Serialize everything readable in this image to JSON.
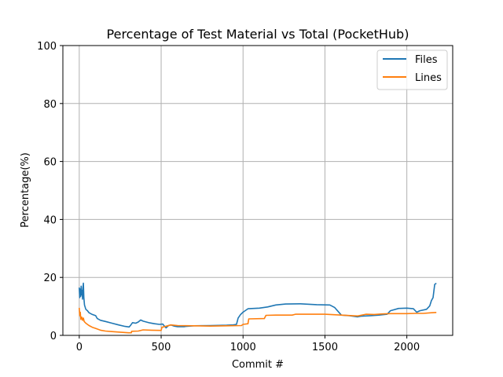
{
  "chart_data": {
    "type": "line",
    "title": "Percentage of Test Material vs Total (PocketHub)",
    "xlabel": "Commit #",
    "ylabel": "Percentage(%)",
    "xlim": [
      -100,
      2280
    ],
    "ylim": [
      0,
      100
    ],
    "xticks": [
      0,
      500,
      1000,
      1500,
      2000
    ],
    "yticks": [
      0,
      20,
      40,
      60,
      80,
      100
    ],
    "grid": true,
    "legend_position": "top-right",
    "series": [
      {
        "name": "Files",
        "color": "#1f77b4",
        "points": [
          [
            0,
            16.5
          ],
          [
            3,
            13.0
          ],
          [
            6,
            16.0
          ],
          [
            9,
            13.5
          ],
          [
            12,
            17.0
          ],
          [
            15,
            14.0
          ],
          [
            18,
            15.5
          ],
          [
            20,
            12.5
          ],
          [
            23,
            16.5
          ],
          [
            25,
            18.0
          ],
          [
            28,
            13.0
          ],
          [
            32,
            10.5
          ],
          [
            40,
            9.0
          ],
          [
            50,
            8.5
          ],
          [
            60,
            7.8
          ],
          [
            70,
            7.5
          ],
          [
            80,
            7.2
          ],
          [
            100,
            6.8
          ],
          [
            110,
            5.8
          ],
          [
            130,
            5.2
          ],
          [
            160,
            4.8
          ],
          [
            200,
            4.2
          ],
          [
            240,
            3.6
          ],
          [
            280,
            3.1
          ],
          [
            305,
            2.9
          ],
          [
            315,
            3.6
          ],
          [
            325,
            4.4
          ],
          [
            345,
            4.2
          ],
          [
            360,
            4.6
          ],
          [
            375,
            5.3
          ],
          [
            390,
            4.9
          ],
          [
            410,
            4.6
          ],
          [
            430,
            4.3
          ],
          [
            460,
            4.0
          ],
          [
            490,
            3.8
          ],
          [
            510,
            3.9
          ],
          [
            520,
            3.2
          ],
          [
            530,
            2.6
          ],
          [
            545,
            3.4
          ],
          [
            560,
            3.6
          ],
          [
            580,
            3.2
          ],
          [
            600,
            3.0
          ],
          [
            640,
            3.0
          ],
          [
            650,
            3.1
          ],
          [
            700,
            3.3
          ],
          [
            800,
            3.4
          ],
          [
            900,
            3.5
          ],
          [
            940,
            3.6
          ],
          [
            960,
            3.8
          ],
          [
            970,
            6.0
          ],
          [
            985,
            7.2
          ],
          [
            1000,
            8.0
          ],
          [
            1030,
            9.2
          ],
          [
            1100,
            9.4
          ],
          [
            1150,
            9.8
          ],
          [
            1200,
            10.5
          ],
          [
            1260,
            10.8
          ],
          [
            1350,
            10.9
          ],
          [
            1450,
            10.6
          ],
          [
            1530,
            10.5
          ],
          [
            1560,
            9.6
          ],
          [
            1600,
            7.0
          ],
          [
            1650,
            6.8
          ],
          [
            1700,
            6.4
          ],
          [
            1720,
            6.6
          ],
          [
            1780,
            6.8
          ],
          [
            1830,
            7.0
          ],
          [
            1880,
            7.3
          ],
          [
            1900,
            8.5
          ],
          [
            1950,
            9.3
          ],
          [
            2000,
            9.4
          ],
          [
            2040,
            9.2
          ],
          [
            2060,
            8.0
          ],
          [
            2080,
            8.5
          ],
          [
            2120,
            9.0
          ],
          [
            2140,
            10.2
          ],
          [
            2150,
            12.0
          ],
          [
            2160,
            13.0
          ],
          [
            2170,
            17.6
          ],
          [
            2180,
            18.0
          ]
        ]
      },
      {
        "name": "Lines",
        "color": "#ff7f0e",
        "points": [
          [
            0,
            9.5
          ],
          [
            3,
            6.8
          ],
          [
            6,
            8.0
          ],
          [
            10,
            5.5
          ],
          [
            15,
            6.3
          ],
          [
            20,
            5.2
          ],
          [
            25,
            6.0
          ],
          [
            30,
            4.8
          ],
          [
            40,
            4.2
          ],
          [
            60,
            3.4
          ],
          [
            80,
            2.8
          ],
          [
            100,
            2.4
          ],
          [
            130,
            1.8
          ],
          [
            160,
            1.5
          ],
          [
            200,
            1.3
          ],
          [
            250,
            1.1
          ],
          [
            300,
            0.9
          ],
          [
            318,
            0.9
          ],
          [
            320,
            1.4
          ],
          [
            360,
            1.5
          ],
          [
            390,
            1.9
          ],
          [
            440,
            1.8
          ],
          [
            500,
            1.7
          ],
          [
            505,
            2.8
          ],
          [
            520,
            3.0
          ],
          [
            540,
            3.3
          ],
          [
            560,
            3.6
          ],
          [
            600,
            3.4
          ],
          [
            700,
            3.3
          ],
          [
            800,
            3.2
          ],
          [
            900,
            3.3
          ],
          [
            990,
            3.4
          ],
          [
            1000,
            3.8
          ],
          [
            1030,
            4.0
          ],
          [
            1035,
            5.7
          ],
          [
            1130,
            5.8
          ],
          [
            1140,
            6.9
          ],
          [
            1200,
            7.0
          ],
          [
            1300,
            7.0
          ],
          [
            1320,
            7.3
          ],
          [
            1400,
            7.3
          ],
          [
            1500,
            7.3
          ],
          [
            1600,
            7.0
          ],
          [
            1700,
            6.7
          ],
          [
            1750,
            7.3
          ],
          [
            1800,
            7.2
          ],
          [
            1850,
            7.4
          ],
          [
            1900,
            7.5
          ],
          [
            2000,
            7.5
          ],
          [
            2050,
            7.6
          ],
          [
            2100,
            7.6
          ],
          [
            2150,
            7.8
          ],
          [
            2180,
            7.9
          ]
        ]
      }
    ]
  }
}
